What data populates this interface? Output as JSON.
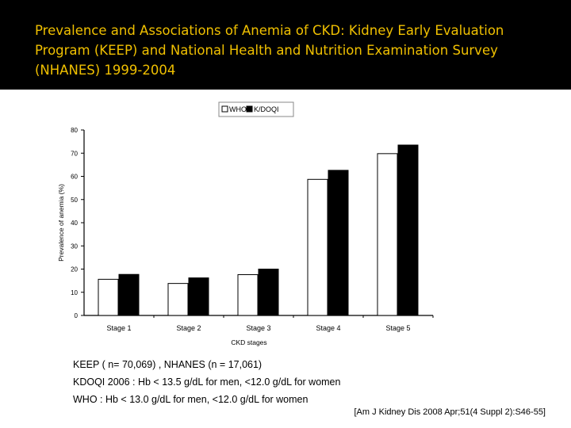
{
  "slide": {
    "title": "Prevalence and Associations of Anemia of CKD: Kidney Early Evaluation Program (KEEP) and National Health and Nutrition Examination Survey (NHANES) 1999-2004",
    "notes": [
      "KEEP ( n= 70,069) , NHANES (n = 17,061)",
      "KDOQI 2006 : Hb < 13.5 g/dL for men, <12.0 g/dL for women",
      "WHO : Hb < 13.0 g/dL for men, <12.0 g/dL for women"
    ],
    "citation": "[Am J Kidney Dis 2008 Apr;51(4 Suppl 2):S46-55]"
  },
  "chart_data": {
    "type": "bar",
    "title": "",
    "xlabel": "CKD stages",
    "ylabel": "Prevalence of anemia (%)",
    "categories": [
      "Stage 1",
      "Stage 2",
      "Stage 3",
      "Stage 4",
      "Stage 5"
    ],
    "ylim": [
      0,
      80
    ],
    "yticks": [
      0,
      10,
      20,
      30,
      40,
      50,
      60,
      70,
      80
    ],
    "grid": false,
    "legend_position": "top-center",
    "series": [
      {
        "name": "WHO",
        "color": "#ffffff",
        "values": [
          15.6,
          13.8,
          17.6,
          58.7,
          69.8
        ]
      },
      {
        "name": "K/DOQI",
        "color": "#000000",
        "values": [
          17.7,
          16.2,
          20.0,
          62.6,
          73.5
        ]
      }
    ]
  }
}
